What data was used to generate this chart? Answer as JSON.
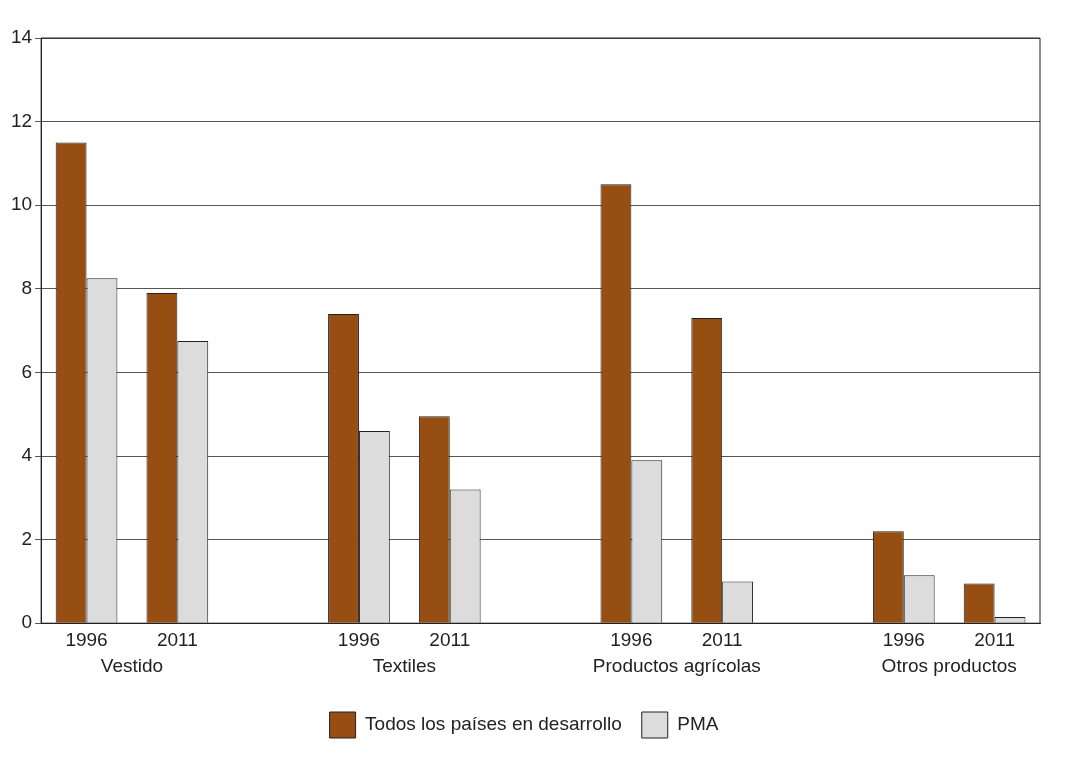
{
  "chart_data": {
    "type": "bar",
    "categories": [
      "1996",
      "2011",
      null,
      "1996",
      "2011",
      null,
      "1996",
      "2011",
      null,
      "1996",
      "2011"
    ],
    "series": [
      {
        "name": "Todos los países en desarrollo",
        "color": "#974e13",
        "values": [
          11.5,
          7.9,
          null,
          7.4,
          4.95,
          null,
          10.5,
          7.3,
          null,
          2.2,
          0.95
        ]
      },
      {
        "name": "PMA",
        "color": "#dcdcdd",
        "values": [
          8.25,
          6.75,
          null,
          4.6,
          3.2,
          null,
          3.9,
          1.0,
          null,
          1.15,
          0.15
        ]
      }
    ],
    "annotations": [
      "Vestido",
      "Textiles",
      "Productos agrícolas",
      "Otros productos"
    ],
    "ylim": [
      0,
      14
    ],
    "yticks": [
      0,
      2,
      4,
      6,
      8,
      10,
      12,
      14
    ],
    "grid": "y",
    "legend": "bottom"
  }
}
